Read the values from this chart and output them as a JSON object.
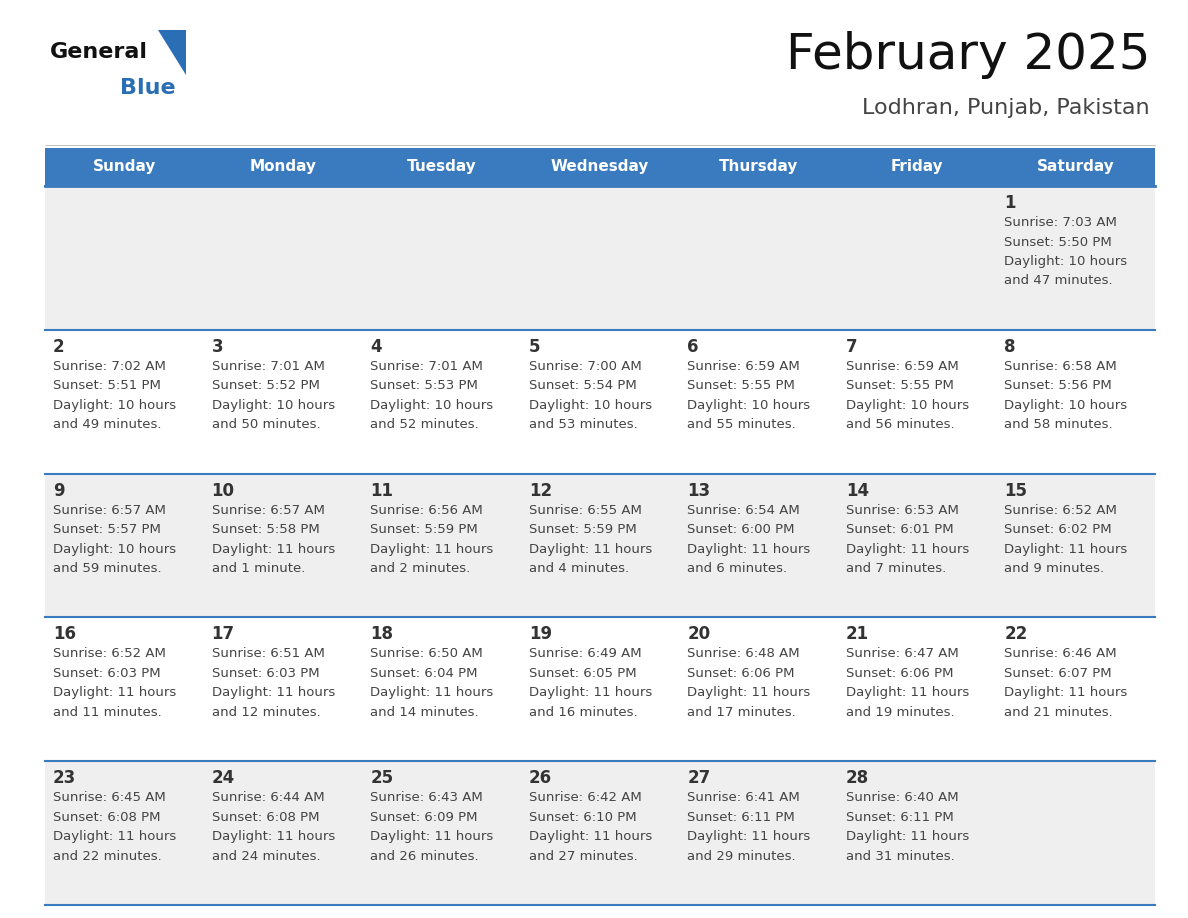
{
  "title": "February 2025",
  "subtitle": "Lodhran, Punjab, Pakistan",
  "header_bg": "#3a7bbf",
  "header_text_color": "#ffffff",
  "cell_bg_odd": "#efefef",
  "cell_bg_even": "#ffffff",
  "day_number_color": "#333333",
  "info_text_color": "#444444",
  "border_color": "#3a7bbf",
  "days_of_week": [
    "Sunday",
    "Monday",
    "Tuesday",
    "Wednesday",
    "Thursday",
    "Friday",
    "Saturday"
  ],
  "weeks": [
    [
      {
        "day": null,
        "sunrise": null,
        "sunset": null,
        "daylight": null
      },
      {
        "day": null,
        "sunrise": null,
        "sunset": null,
        "daylight": null
      },
      {
        "day": null,
        "sunrise": null,
        "sunset": null,
        "daylight": null
      },
      {
        "day": null,
        "sunrise": null,
        "sunset": null,
        "daylight": null
      },
      {
        "day": null,
        "sunrise": null,
        "sunset": null,
        "daylight": null
      },
      {
        "day": null,
        "sunrise": null,
        "sunset": null,
        "daylight": null
      },
      {
        "day": 1,
        "sunrise": "7:03 AM",
        "sunset": "5:50 PM",
        "daylight": "10 hours and 47 minutes."
      }
    ],
    [
      {
        "day": 2,
        "sunrise": "7:02 AM",
        "sunset": "5:51 PM",
        "daylight": "10 hours and 49 minutes."
      },
      {
        "day": 3,
        "sunrise": "7:01 AM",
        "sunset": "5:52 PM",
        "daylight": "10 hours and 50 minutes."
      },
      {
        "day": 4,
        "sunrise": "7:01 AM",
        "sunset": "5:53 PM",
        "daylight": "10 hours and 52 minutes."
      },
      {
        "day": 5,
        "sunrise": "7:00 AM",
        "sunset": "5:54 PM",
        "daylight": "10 hours and 53 minutes."
      },
      {
        "day": 6,
        "sunrise": "6:59 AM",
        "sunset": "5:55 PM",
        "daylight": "10 hours and 55 minutes."
      },
      {
        "day": 7,
        "sunrise": "6:59 AM",
        "sunset": "5:55 PM",
        "daylight": "10 hours and 56 minutes."
      },
      {
        "day": 8,
        "sunrise": "6:58 AM",
        "sunset": "5:56 PM",
        "daylight": "10 hours and 58 minutes."
      }
    ],
    [
      {
        "day": 9,
        "sunrise": "6:57 AM",
        "sunset": "5:57 PM",
        "daylight": "10 hours and 59 minutes."
      },
      {
        "day": 10,
        "sunrise": "6:57 AM",
        "sunset": "5:58 PM",
        "daylight": "11 hours and 1 minute."
      },
      {
        "day": 11,
        "sunrise": "6:56 AM",
        "sunset": "5:59 PM",
        "daylight": "11 hours and 2 minutes."
      },
      {
        "day": 12,
        "sunrise": "6:55 AM",
        "sunset": "5:59 PM",
        "daylight": "11 hours and 4 minutes."
      },
      {
        "day": 13,
        "sunrise": "6:54 AM",
        "sunset": "6:00 PM",
        "daylight": "11 hours and 6 minutes."
      },
      {
        "day": 14,
        "sunrise": "6:53 AM",
        "sunset": "6:01 PM",
        "daylight": "11 hours and 7 minutes."
      },
      {
        "day": 15,
        "sunrise": "6:52 AM",
        "sunset": "6:02 PM",
        "daylight": "11 hours and 9 minutes."
      }
    ],
    [
      {
        "day": 16,
        "sunrise": "6:52 AM",
        "sunset": "6:03 PM",
        "daylight": "11 hours and 11 minutes."
      },
      {
        "day": 17,
        "sunrise": "6:51 AM",
        "sunset": "6:03 PM",
        "daylight": "11 hours and 12 minutes."
      },
      {
        "day": 18,
        "sunrise": "6:50 AM",
        "sunset": "6:04 PM",
        "daylight": "11 hours and 14 minutes."
      },
      {
        "day": 19,
        "sunrise": "6:49 AM",
        "sunset": "6:05 PM",
        "daylight": "11 hours and 16 minutes."
      },
      {
        "day": 20,
        "sunrise": "6:48 AM",
        "sunset": "6:06 PM",
        "daylight": "11 hours and 17 minutes."
      },
      {
        "day": 21,
        "sunrise": "6:47 AM",
        "sunset": "6:06 PM",
        "daylight": "11 hours and 19 minutes."
      },
      {
        "day": 22,
        "sunrise": "6:46 AM",
        "sunset": "6:07 PM",
        "daylight": "11 hours and 21 minutes."
      }
    ],
    [
      {
        "day": 23,
        "sunrise": "6:45 AM",
        "sunset": "6:08 PM",
        "daylight": "11 hours and 22 minutes."
      },
      {
        "day": 24,
        "sunrise": "6:44 AM",
        "sunset": "6:08 PM",
        "daylight": "11 hours and 24 minutes."
      },
      {
        "day": 25,
        "sunrise": "6:43 AM",
        "sunset": "6:09 PM",
        "daylight": "11 hours and 26 minutes."
      },
      {
        "day": 26,
        "sunrise": "6:42 AM",
        "sunset": "6:10 PM",
        "daylight": "11 hours and 27 minutes."
      },
      {
        "day": 27,
        "sunrise": "6:41 AM",
        "sunset": "6:11 PM",
        "daylight": "11 hours and 29 minutes."
      },
      {
        "day": 28,
        "sunrise": "6:40 AM",
        "sunset": "6:11 PM",
        "daylight": "11 hours and 31 minutes."
      },
      {
        "day": null,
        "sunrise": null,
        "sunset": null,
        "daylight": null
      }
    ]
  ],
  "logo_color_general": "#111111",
  "logo_color_blue": "#2a6eb5",
  "logo_triangle_color": "#2a6eb5"
}
